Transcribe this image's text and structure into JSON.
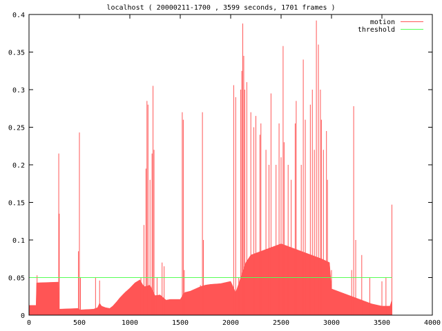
{
  "chart_data": {
    "type": "area",
    "title": "localhost ( 20000211-1700 , 3599 seconds, 1701 frames )",
    "xlim": [
      0,
      4000
    ],
    "ylim": [
      0,
      0.4
    ],
    "x_ticks": [
      "0",
      "500",
      "1000",
      "1500",
      "2000",
      "2500",
      "3000",
      "3500",
      "4000"
    ],
    "y_ticks": [
      "0",
      "0.05",
      "0.1",
      "0.15",
      "0.2",
      "0.25",
      "0.3",
      "0.35",
      "0.4"
    ],
    "legend_position": "top-right",
    "grid": false,
    "series": [
      {
        "name": "motion",
        "color": "#ff5555",
        "baseline_points": [
          [
            0,
            0.013
          ],
          [
            70,
            0.013
          ],
          [
            75,
            0.043
          ],
          [
            290,
            0.044
          ],
          [
            295,
            0.008
          ],
          [
            490,
            0.009
          ],
          [
            500,
            0.007
          ],
          [
            640,
            0.008
          ],
          [
            680,
            0.01
          ],
          [
            700,
            0.016
          ],
          [
            720,
            0.012
          ],
          [
            760,
            0.01
          ],
          [
            800,
            0.009
          ],
          [
            830,
            0.012
          ],
          [
            870,
            0.018
          ],
          [
            900,
            0.023
          ],
          [
            950,
            0.03
          ],
          [
            1000,
            0.036
          ],
          [
            1050,
            0.043
          ],
          [
            1100,
            0.047
          ],
          [
            1130,
            0.04
          ],
          [
            1150,
            0.038
          ],
          [
            1200,
            0.04
          ],
          [
            1250,
            0.026
          ],
          [
            1300,
            0.027
          ],
          [
            1360,
            0.02
          ],
          [
            1400,
            0.021
          ],
          [
            1500,
            0.021
          ],
          [
            1540,
            0.03
          ],
          [
            1600,
            0.032
          ],
          [
            1650,
            0.035
          ],
          [
            1700,
            0.038
          ],
          [
            1750,
            0.04
          ],
          [
            1800,
            0.041
          ],
          [
            1900,
            0.042
          ],
          [
            2000,
            0.045
          ],
          [
            2050,
            0.03
          ],
          [
            2100,
            0.05
          ],
          [
            2150,
            0.07
          ],
          [
            2200,
            0.08
          ],
          [
            2300,
            0.085
          ],
          [
            2400,
            0.09
          ],
          [
            2500,
            0.095
          ],
          [
            2600,
            0.09
          ],
          [
            2700,
            0.085
          ],
          [
            2800,
            0.08
          ],
          [
            2900,
            0.075
          ],
          [
            2980,
            0.07
          ],
          [
            3000,
            0.035
          ],
          [
            3100,
            0.03
          ],
          [
            3200,
            0.025
          ],
          [
            3300,
            0.02
          ],
          [
            3400,
            0.015
          ],
          [
            3500,
            0.012
          ],
          [
            3580,
            0.012
          ],
          [
            3599,
            0.02
          ],
          [
            3600,
            0
          ]
        ],
        "spikes": [
          [
            80,
            0.053
          ],
          [
            295,
            0.215
          ],
          [
            300,
            0.135
          ],
          [
            490,
            0.085
          ],
          [
            500,
            0.243
          ],
          [
            510,
            0.05
          ],
          [
            660,
            0.05
          ],
          [
            700,
            0.046
          ],
          [
            1110,
            0.05
          ],
          [
            1140,
            0.12
          ],
          [
            1160,
            0.195
          ],
          [
            1170,
            0.285
          ],
          [
            1180,
            0.28
          ],
          [
            1200,
            0.18
          ],
          [
            1220,
            0.215
          ],
          [
            1230,
            0.305
          ],
          [
            1240,
            0.22
          ],
          [
            1270,
            0.05
          ],
          [
            1320,
            0.07
          ],
          [
            1340,
            0.065
          ],
          [
            1520,
            0.27
          ],
          [
            1530,
            0.26
          ],
          [
            1540,
            0.06
          ],
          [
            1700,
            0.04
          ],
          [
            1720,
            0.27
          ],
          [
            1730,
            0.1
          ],
          [
            2030,
            0.306
          ],
          [
            2050,
            0.29
          ],
          [
            2080,
            0.05
          ],
          [
            2100,
            0.3
          ],
          [
            2110,
            0.325
          ],
          [
            2120,
            0.388
          ],
          [
            2130,
            0.345
          ],
          [
            2140,
            0.3
          ],
          [
            2160,
            0.31
          ],
          [
            2200,
            0.27
          ],
          [
            2230,
            0.25
          ],
          [
            2250,
            0.265
          ],
          [
            2290,
            0.24
          ],
          [
            2300,
            0.255
          ],
          [
            2350,
            0.22
          ],
          [
            2380,
            0.2
          ],
          [
            2400,
            0.295
          ],
          [
            2450,
            0.2
          ],
          [
            2480,
            0.255
          ],
          [
            2500,
            0.21
          ],
          [
            2520,
            0.358
          ],
          [
            2530,
            0.23
          ],
          [
            2570,
            0.2
          ],
          [
            2600,
            0.18
          ],
          [
            2640,
            0.255
          ],
          [
            2650,
            0.285
          ],
          [
            2700,
            0.2
          ],
          [
            2720,
            0.34
          ],
          [
            2740,
            0.26
          ],
          [
            2790,
            0.28
          ],
          [
            2810,
            0.3
          ],
          [
            2830,
            0.22
          ],
          [
            2850,
            0.392
          ],
          [
            2870,
            0.36
          ],
          [
            2890,
            0.3
          ],
          [
            2900,
            0.26
          ],
          [
            2920,
            0.22
          ],
          [
            2950,
            0.245
          ],
          [
            2960,
            0.18
          ],
          [
            3000,
            0.06
          ],
          [
            3200,
            0.06
          ],
          [
            3220,
            0.278
          ],
          [
            3240,
            0.1
          ],
          [
            3300,
            0.08
          ],
          [
            3380,
            0.05
          ],
          [
            3500,
            0.045
          ],
          [
            3540,
            0.05
          ],
          [
            3599,
            0.147
          ]
        ]
      },
      {
        "name": "threshold",
        "color": "#55ff55",
        "points": [
          [
            0,
            0.05
          ],
          [
            3599,
            0.05
          ]
        ]
      }
    ]
  }
}
